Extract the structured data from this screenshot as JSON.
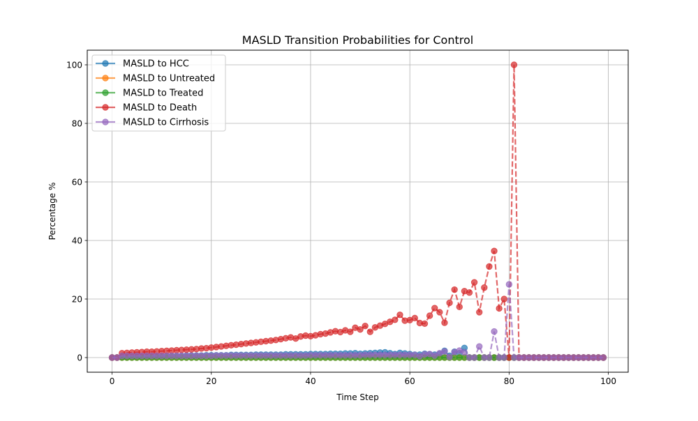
{
  "chart_data": {
    "type": "line",
    "title": "MASLD Transition Probabilities for Control",
    "xlabel": "Time Step",
    "ylabel": "Percentage %",
    "xlim": [
      -5,
      104
    ],
    "ylim": [
      -5,
      105
    ],
    "xticks": [
      0,
      20,
      40,
      60,
      80,
      100
    ],
    "yticks": [
      0,
      20,
      40,
      60,
      80,
      100
    ],
    "grid": true,
    "legend_position": "top-left",
    "x": [
      0,
      1,
      2,
      3,
      4,
      5,
      6,
      7,
      8,
      9,
      10,
      11,
      12,
      13,
      14,
      15,
      16,
      17,
      18,
      19,
      20,
      21,
      22,
      23,
      24,
      25,
      26,
      27,
      28,
      29,
      30,
      31,
      32,
      33,
      34,
      35,
      36,
      37,
      38,
      39,
      40,
      41,
      42,
      43,
      44,
      45,
      46,
      47,
      48,
      49,
      50,
      51,
      52,
      53,
      54,
      55,
      56,
      57,
      58,
      59,
      60,
      61,
      62,
      63,
      64,
      65,
      66,
      67,
      68,
      69,
      70,
      71,
      72,
      73,
      74,
      75,
      76,
      77,
      78,
      79,
      80,
      81,
      82,
      83,
      84,
      85,
      86,
      87,
      88,
      89,
      90,
      91,
      92,
      93,
      94,
      95,
      96,
      97,
      98,
      99
    ],
    "series": [
      {
        "name": "MASLD to HCC",
        "color": "#1f77b4",
        "values": [
          0,
          0,
          0.3,
          0.3,
          0.4,
          0.4,
          0.4,
          0.5,
          0.5,
          0.5,
          0.5,
          0.6,
          0.6,
          0.6,
          0.6,
          0.7,
          0.7,
          0.7,
          0.7,
          0.8,
          0.8,
          0.8,
          0.8,
          0.8,
          0.9,
          0.9,
          0.9,
          0.9,
          0.9,
          1.0,
          1.0,
          1.0,
          1.0,
          1.0,
          1.0,
          1.1,
          1.1,
          1.1,
          1.1,
          1.1,
          1.2,
          1.2,
          1.2,
          1.2,
          1.3,
          1.3,
          1.3,
          1.4,
          1.4,
          1.5,
          1.3,
          1.4,
          1.5,
          1.6,
          1.7,
          1.8,
          1.5,
          1.2,
          1.6,
          1.4,
          1.2,
          1.0,
          1.0,
          1.3,
          1.1,
          1.0,
          1.2,
          2.3,
          0.6,
          2.0,
          1.5,
          3.3,
          0,
          0,
          0,
          0,
          0,
          0,
          0,
          0,
          0,
          0,
          0,
          0,
          0,
          0,
          0,
          0,
          0,
          0,
          0,
          0,
          0,
          0,
          0,
          0,
          0,
          0,
          0,
          0
        ]
      },
      {
        "name": "MASLD to Untreated",
        "color": "#ff7f0e",
        "values": [
          0,
          0,
          0,
          0,
          0,
          0,
          0,
          0,
          0,
          0,
          0,
          0,
          0,
          0,
          0,
          0,
          0,
          0,
          0,
          0,
          0,
          0,
          0,
          0,
          0,
          0,
          0,
          0,
          0,
          0,
          0,
          0,
          0,
          0,
          0,
          0,
          0,
          0,
          0,
          0,
          0,
          0,
          0,
          0,
          0,
          0,
          0,
          0,
          0,
          0,
          0,
          0,
          0,
          0,
          0,
          0,
          0,
          0,
          0,
          0,
          0,
          0,
          0,
          0,
          0,
          0,
          0,
          0,
          0,
          0,
          0,
          0,
          0,
          0,
          0,
          0,
          0,
          0,
          0,
          0,
          0,
          0,
          0,
          0,
          0,
          0,
          0,
          0,
          0,
          0,
          0,
          0,
          0,
          0,
          0,
          0,
          0,
          0,
          0,
          0
        ]
      },
      {
        "name": "MASLD to Treated",
        "color": "#2ca02c",
        "values": [
          0,
          0,
          0,
          0,
          0,
          0,
          0,
          0,
          0,
          0,
          0,
          0,
          0,
          0,
          0,
          0,
          0,
          0,
          0,
          0,
          0,
          0,
          0,
          0,
          0,
          0,
          0,
          0,
          0,
          0,
          0,
          0,
          0,
          0,
          0,
          0,
          0,
          0,
          0,
          0,
          0,
          0,
          0,
          0,
          0,
          0,
          0,
          0,
          0,
          0,
          0,
          0,
          0,
          0,
          0,
          0,
          0,
          0,
          0,
          0,
          0,
          0,
          0,
          0,
          0,
          0,
          0,
          0,
          0,
          0,
          0,
          0,
          0,
          0,
          0,
          0,
          0,
          0,
          0,
          0,
          0,
          0,
          0,
          0,
          0,
          0,
          0,
          0,
          0,
          0,
          0,
          0,
          0,
          0,
          0,
          0,
          0,
          0,
          0,
          0
        ]
      },
      {
        "name": "MASLD to Death",
        "color": "#d62728",
        "values": [
          0,
          0,
          1.5,
          1.6,
          1.7,
          1.8,
          1.9,
          2.0,
          2.0,
          2.1,
          2.2,
          2.3,
          2.4,
          2.5,
          2.6,
          2.7,
          2.8,
          2.9,
          3.1,
          3.2,
          3.4,
          3.6,
          3.8,
          4.0,
          4.2,
          4.4,
          4.6,
          4.8,
          5.0,
          5.2,
          5.4,
          5.6,
          5.8,
          6.0,
          6.3,
          6.6,
          6.9,
          6.5,
          7.2,
          7.5,
          7.3,
          7.6,
          8.0,
          8.2,
          8.6,
          9.0,
          8.7,
          9.3,
          8.8,
          10.2,
          9.6,
          10.8,
          8.8,
          10.3,
          10.9,
          11.5,
          12.2,
          12.9,
          14.6,
          12.6,
          12.8,
          13.5,
          11.8,
          11.6,
          14.3,
          16.9,
          15.5,
          11.9,
          18.7,
          23.2,
          17.3,
          22.7,
          22.2,
          25.7,
          15.5,
          23.9,
          31.1,
          36.4,
          16.8,
          20.0,
          0,
          100,
          0,
          0,
          0,
          0,
          0,
          0,
          0,
          0,
          0,
          0,
          0,
          0,
          0,
          0,
          0,
          0,
          0,
          0
        ]
      },
      {
        "name": "MASLD to Cirrhosis",
        "color": "#9467bd",
        "values": [
          0,
          0,
          0.6,
          0.6,
          0.6,
          0.6,
          0.6,
          0.6,
          0.6,
          0.6,
          0.6,
          0.6,
          0.6,
          0.6,
          0.6,
          0.6,
          0.6,
          0.6,
          0.6,
          0.6,
          0.6,
          0.7,
          0.7,
          0.7,
          0.7,
          0.7,
          0.7,
          0.7,
          0.7,
          0.7,
          0.7,
          0.7,
          0.7,
          0.7,
          0.7,
          0.7,
          0.7,
          0.7,
          0.7,
          0.7,
          0.8,
          0.8,
          0.8,
          0.8,
          0.8,
          0.8,
          0.8,
          0.8,
          0.8,
          0.8,
          0.8,
          0.9,
          0.9,
          0.9,
          0.9,
          0.9,
          0.9,
          0.9,
          0.9,
          0.9,
          0.9,
          0.9,
          0.5,
          1.1,
          1.2,
          0.7,
          1.5,
          2.1,
          0.2,
          1.9,
          2.4,
          1.8,
          0,
          0,
          3.8,
          0,
          0,
          8.9,
          0,
          0,
          25.0,
          0,
          0,
          0,
          0,
          0,
          0,
          0,
          0,
          0,
          0,
          0,
          0,
          0,
          0,
          0,
          0,
          0,
          0,
          0
        ]
      }
    ]
  }
}
